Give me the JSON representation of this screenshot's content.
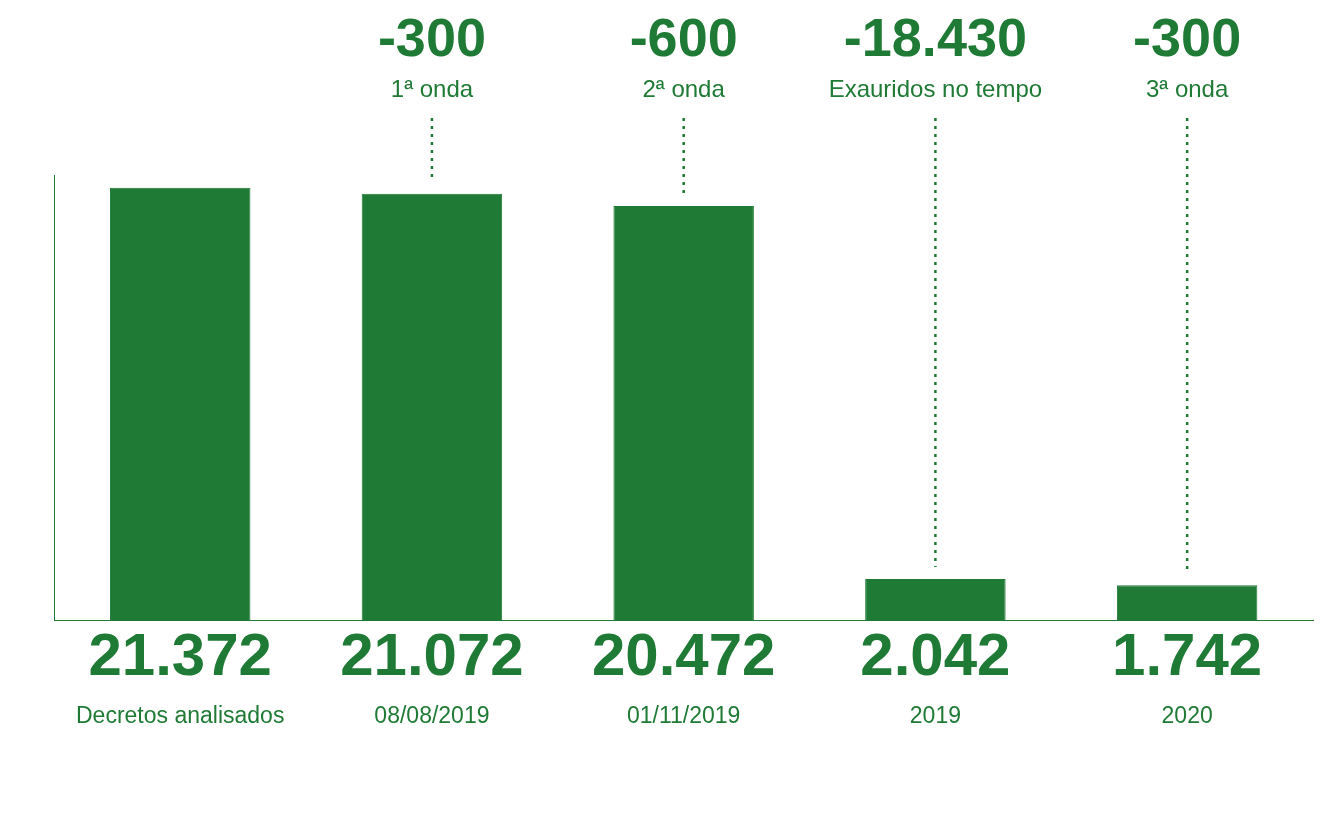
{
  "chart_data": {
    "type": "bar",
    "categories": [
      "Decretos analisados",
      "08/08/2019",
      "01/11/2019",
      "2019",
      "2020"
    ],
    "values": [
      21372,
      21072,
      20472,
      2042,
      1742
    ],
    "value_labels": [
      "21.372",
      "21.072",
      "20.472",
      "2.042",
      "1.742"
    ],
    "data_labels": true,
    "color": "#1f7a35",
    "ylim": [
      0,
      22000
    ],
    "grid": false,
    "tick_labels": "x",
    "annotations": [
      {
        "x": "08/08/2019",
        "label": "-300",
        "text": "1ª onda"
      },
      {
        "x": "01/11/2019",
        "label": "-600",
        "text": "2ª onda"
      },
      {
        "x": "2019",
        "label": "-18.430",
        "text": "Exauridos no tempo"
      },
      {
        "x": "2020",
        "label": "-300",
        "text": "3ª onda"
      }
    ]
  }
}
